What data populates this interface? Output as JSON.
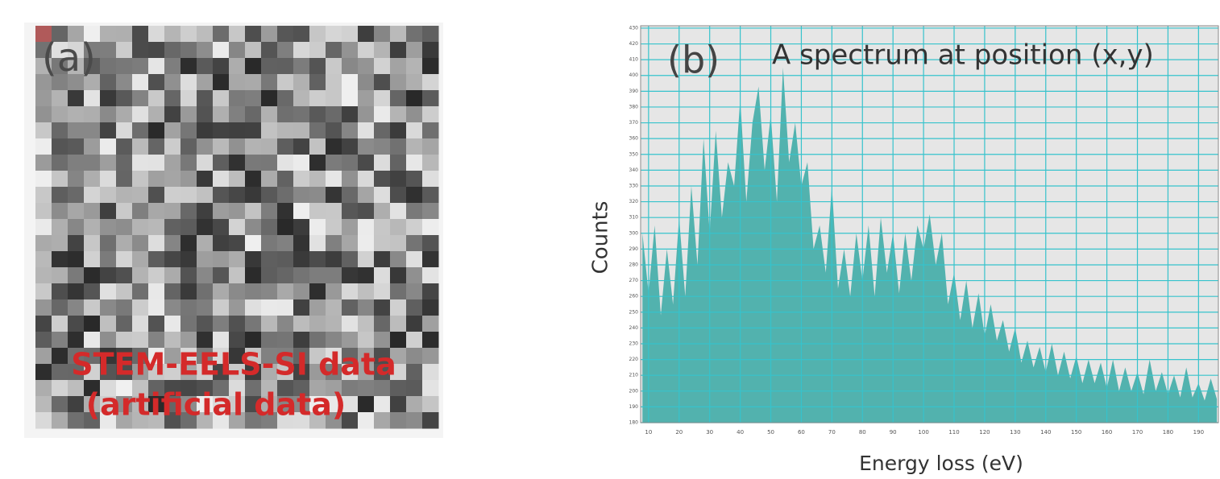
{
  "image_panel": {
    "label": "(a)",
    "caption": [
      "STEM-EELS-SI data",
      "(artificial data)"
    ]
  },
  "chart_data": {
    "type": "area",
    "label": "(b)",
    "title": "A spectrum at position (x,y)",
    "x_label": "Energy loss (eV)",
    "y_label": "Counts",
    "color": "#52b2ae",
    "grid": true,
    "x": [
      8,
      10,
      12,
      14,
      16,
      18,
      20,
      22,
      24,
      26,
      28,
      30,
      32,
      34,
      36,
      38,
      40,
      42,
      44,
      46,
      48,
      50,
      52,
      54,
      56,
      58,
      60,
      62,
      64,
      66,
      68,
      70,
      72,
      74,
      76,
      78,
      80,
      82,
      84,
      86,
      88,
      90,
      92,
      94,
      96,
      98,
      100,
      102,
      104,
      106,
      108,
      110,
      112,
      114,
      116,
      118,
      120,
      122,
      124,
      126,
      128,
      130,
      132,
      134,
      136,
      138,
      140,
      142,
      144,
      146,
      148,
      150,
      152,
      154,
      156,
      158,
      160,
      162,
      164,
      166,
      168,
      170,
      172,
      174,
      176,
      178,
      180,
      182,
      184,
      186,
      188,
      190,
      192,
      194,
      196
    ],
    "values": [
      300,
      262,
      305,
      248,
      290,
      255,
      310,
      260,
      330,
      280,
      360,
      300,
      365,
      310,
      345,
      330,
      385,
      320,
      370,
      393,
      340,
      375,
      320,
      405,
      345,
      370,
      330,
      345,
      290,
      305,
      275,
      330,
      265,
      290,
      260,
      300,
      270,
      305,
      260,
      310,
      275,
      300,
      262,
      300,
      270,
      305,
      290,
      312,
      280,
      300,
      255,
      275,
      245,
      270,
      240,
      262,
      235,
      255,
      232,
      245,
      225,
      240,
      218,
      232,
      215,
      228,
      212,
      230,
      210,
      225,
      208,
      222,
      205,
      220,
      205,
      218,
      202,
      220,
      200,
      215,
      200,
      212,
      198,
      220,
      200,
      212,
      198,
      210,
      196,
      215,
      196,
      205,
      194,
      208,
      195
    ],
    "xlim": [
      7.4,
      196.5
    ],
    "ylim": [
      180,
      431.5
    ],
    "xticks": [
      10,
      20,
      30,
      40,
      50,
      60,
      70,
      80,
      90,
      100,
      110,
      120,
      130,
      140,
      150,
      160,
      170,
      180,
      190
    ],
    "yticks": [
      180,
      190,
      200,
      210,
      220,
      230,
      240,
      250,
      260,
      270,
      280,
      290,
      300,
      310,
      320,
      330,
      340,
      350,
      360,
      370,
      380,
      390,
      400,
      410,
      420,
      430
    ]
  }
}
